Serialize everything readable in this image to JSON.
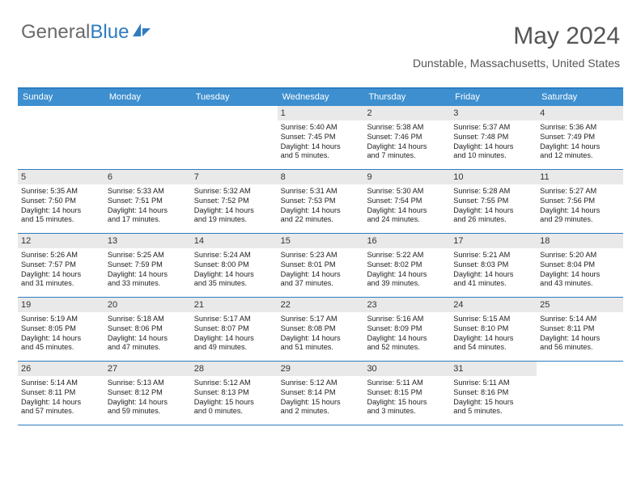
{
  "logo": {
    "part1": "General",
    "part2": "Blue"
  },
  "title": "May 2024",
  "location": "Dunstable, Massachusetts, United States",
  "styling": {
    "accent_color": "#2e7cc0",
    "header_bg": "#3d8fcf",
    "header_fg": "#ffffff",
    "daynum_bg": "#e9e9e9",
    "body_bg": "#ffffff",
    "text_color": "#222222",
    "title_fontsize": 30,
    "location_fontsize": 14,
    "header_fontsize": 11,
    "daynum_fontsize": 11,
    "cell_fontsize": 9.2
  },
  "weekdays": [
    "Sunday",
    "Monday",
    "Tuesday",
    "Wednesday",
    "Thursday",
    "Friday",
    "Saturday"
  ],
  "weeks": [
    [
      {
        "n": "",
        "sunrise": "",
        "sunset": "",
        "daylight1": "",
        "daylight2": ""
      },
      {
        "n": "",
        "sunrise": "",
        "sunset": "",
        "daylight1": "",
        "daylight2": ""
      },
      {
        "n": "",
        "sunrise": "",
        "sunset": "",
        "daylight1": "",
        "daylight2": ""
      },
      {
        "n": "1",
        "sunrise": "Sunrise: 5:40 AM",
        "sunset": "Sunset: 7:45 PM",
        "daylight1": "Daylight: 14 hours",
        "daylight2": "and 5 minutes."
      },
      {
        "n": "2",
        "sunrise": "Sunrise: 5:38 AM",
        "sunset": "Sunset: 7:46 PM",
        "daylight1": "Daylight: 14 hours",
        "daylight2": "and 7 minutes."
      },
      {
        "n": "3",
        "sunrise": "Sunrise: 5:37 AM",
        "sunset": "Sunset: 7:48 PM",
        "daylight1": "Daylight: 14 hours",
        "daylight2": "and 10 minutes."
      },
      {
        "n": "4",
        "sunrise": "Sunrise: 5:36 AM",
        "sunset": "Sunset: 7:49 PM",
        "daylight1": "Daylight: 14 hours",
        "daylight2": "and 12 minutes."
      }
    ],
    [
      {
        "n": "5",
        "sunrise": "Sunrise: 5:35 AM",
        "sunset": "Sunset: 7:50 PM",
        "daylight1": "Daylight: 14 hours",
        "daylight2": "and 15 minutes."
      },
      {
        "n": "6",
        "sunrise": "Sunrise: 5:33 AM",
        "sunset": "Sunset: 7:51 PM",
        "daylight1": "Daylight: 14 hours",
        "daylight2": "and 17 minutes."
      },
      {
        "n": "7",
        "sunrise": "Sunrise: 5:32 AM",
        "sunset": "Sunset: 7:52 PM",
        "daylight1": "Daylight: 14 hours",
        "daylight2": "and 19 minutes."
      },
      {
        "n": "8",
        "sunrise": "Sunrise: 5:31 AM",
        "sunset": "Sunset: 7:53 PM",
        "daylight1": "Daylight: 14 hours",
        "daylight2": "and 22 minutes."
      },
      {
        "n": "9",
        "sunrise": "Sunrise: 5:30 AM",
        "sunset": "Sunset: 7:54 PM",
        "daylight1": "Daylight: 14 hours",
        "daylight2": "and 24 minutes."
      },
      {
        "n": "10",
        "sunrise": "Sunrise: 5:28 AM",
        "sunset": "Sunset: 7:55 PM",
        "daylight1": "Daylight: 14 hours",
        "daylight2": "and 26 minutes."
      },
      {
        "n": "11",
        "sunrise": "Sunrise: 5:27 AM",
        "sunset": "Sunset: 7:56 PM",
        "daylight1": "Daylight: 14 hours",
        "daylight2": "and 29 minutes."
      }
    ],
    [
      {
        "n": "12",
        "sunrise": "Sunrise: 5:26 AM",
        "sunset": "Sunset: 7:57 PM",
        "daylight1": "Daylight: 14 hours",
        "daylight2": "and 31 minutes."
      },
      {
        "n": "13",
        "sunrise": "Sunrise: 5:25 AM",
        "sunset": "Sunset: 7:59 PM",
        "daylight1": "Daylight: 14 hours",
        "daylight2": "and 33 minutes."
      },
      {
        "n": "14",
        "sunrise": "Sunrise: 5:24 AM",
        "sunset": "Sunset: 8:00 PM",
        "daylight1": "Daylight: 14 hours",
        "daylight2": "and 35 minutes."
      },
      {
        "n": "15",
        "sunrise": "Sunrise: 5:23 AM",
        "sunset": "Sunset: 8:01 PM",
        "daylight1": "Daylight: 14 hours",
        "daylight2": "and 37 minutes."
      },
      {
        "n": "16",
        "sunrise": "Sunrise: 5:22 AM",
        "sunset": "Sunset: 8:02 PM",
        "daylight1": "Daylight: 14 hours",
        "daylight2": "and 39 minutes."
      },
      {
        "n": "17",
        "sunrise": "Sunrise: 5:21 AM",
        "sunset": "Sunset: 8:03 PM",
        "daylight1": "Daylight: 14 hours",
        "daylight2": "and 41 minutes."
      },
      {
        "n": "18",
        "sunrise": "Sunrise: 5:20 AM",
        "sunset": "Sunset: 8:04 PM",
        "daylight1": "Daylight: 14 hours",
        "daylight2": "and 43 minutes."
      }
    ],
    [
      {
        "n": "19",
        "sunrise": "Sunrise: 5:19 AM",
        "sunset": "Sunset: 8:05 PM",
        "daylight1": "Daylight: 14 hours",
        "daylight2": "and 45 minutes."
      },
      {
        "n": "20",
        "sunrise": "Sunrise: 5:18 AM",
        "sunset": "Sunset: 8:06 PM",
        "daylight1": "Daylight: 14 hours",
        "daylight2": "and 47 minutes."
      },
      {
        "n": "21",
        "sunrise": "Sunrise: 5:17 AM",
        "sunset": "Sunset: 8:07 PM",
        "daylight1": "Daylight: 14 hours",
        "daylight2": "and 49 minutes."
      },
      {
        "n": "22",
        "sunrise": "Sunrise: 5:17 AM",
        "sunset": "Sunset: 8:08 PM",
        "daylight1": "Daylight: 14 hours",
        "daylight2": "and 51 minutes."
      },
      {
        "n": "23",
        "sunrise": "Sunrise: 5:16 AM",
        "sunset": "Sunset: 8:09 PM",
        "daylight1": "Daylight: 14 hours",
        "daylight2": "and 52 minutes."
      },
      {
        "n": "24",
        "sunrise": "Sunrise: 5:15 AM",
        "sunset": "Sunset: 8:10 PM",
        "daylight1": "Daylight: 14 hours",
        "daylight2": "and 54 minutes."
      },
      {
        "n": "25",
        "sunrise": "Sunrise: 5:14 AM",
        "sunset": "Sunset: 8:11 PM",
        "daylight1": "Daylight: 14 hours",
        "daylight2": "and 56 minutes."
      }
    ],
    [
      {
        "n": "26",
        "sunrise": "Sunrise: 5:14 AM",
        "sunset": "Sunset: 8:11 PM",
        "daylight1": "Daylight: 14 hours",
        "daylight2": "and 57 minutes."
      },
      {
        "n": "27",
        "sunrise": "Sunrise: 5:13 AM",
        "sunset": "Sunset: 8:12 PM",
        "daylight1": "Daylight: 14 hours",
        "daylight2": "and 59 minutes."
      },
      {
        "n": "28",
        "sunrise": "Sunrise: 5:12 AM",
        "sunset": "Sunset: 8:13 PM",
        "daylight1": "Daylight: 15 hours",
        "daylight2": "and 0 minutes."
      },
      {
        "n": "29",
        "sunrise": "Sunrise: 5:12 AM",
        "sunset": "Sunset: 8:14 PM",
        "daylight1": "Daylight: 15 hours",
        "daylight2": "and 2 minutes."
      },
      {
        "n": "30",
        "sunrise": "Sunrise: 5:11 AM",
        "sunset": "Sunset: 8:15 PM",
        "daylight1": "Daylight: 15 hours",
        "daylight2": "and 3 minutes."
      },
      {
        "n": "31",
        "sunrise": "Sunrise: 5:11 AM",
        "sunset": "Sunset: 8:16 PM",
        "daylight1": "Daylight: 15 hours",
        "daylight2": "and 5 minutes."
      },
      {
        "n": "",
        "sunrise": "",
        "sunset": "",
        "daylight1": "",
        "daylight2": ""
      }
    ]
  ]
}
